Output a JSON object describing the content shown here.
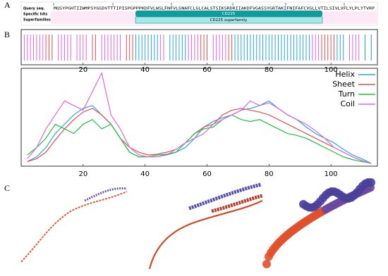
{
  "panels": [
    "A",
    "B",
    "C"
  ],
  "domain_graphic": {
    "rows": [
      "Query seq.",
      "Specific hits",
      "Superfamilies"
    ],
    "sequence": "MQSYPGHTIIWMPSYGGDVTTTIPISPGPPPKDFVLWSLFNFVLGNAFCLGLCALSTSIKSRDRIIAKDFVGASSYGRTAKIFNIFAFCVGLLVTILSIVLVFLYLPLYTVRP",
    "specific_hit": "CD225",
    "superfamily": "CD225 superfamily"
  },
  "chart_data": [
    {
      "type": "strip",
      "xlim": [
        0,
        115
      ],
      "xticks": [
        20,
        40,
        60,
        80,
        100
      ],
      "segments": [
        {
          "start": 1,
          "end": 7,
          "color": "#e066e0"
        },
        {
          "start": 8,
          "end": 10,
          "color": "#e05050"
        },
        {
          "start": 12,
          "end": 16,
          "color": "#e066e0"
        },
        {
          "start": 18,
          "end": 21,
          "color": "#e066e0"
        },
        {
          "start": 23,
          "end": 24,
          "color": "#e05050"
        },
        {
          "start": 26,
          "end": 32,
          "color": "#e066e0"
        },
        {
          "start": 34,
          "end": 36,
          "color": "#e05050"
        },
        {
          "start": 37,
          "end": 44,
          "color": "#2aa7d6"
        },
        {
          "start": 45,
          "end": 46,
          "color": "#e066e0"
        },
        {
          "start": 48,
          "end": 53,
          "color": "#2aa7d6"
        },
        {
          "start": 54,
          "end": 57,
          "color": "#e066e0"
        },
        {
          "start": 58,
          "end": 60,
          "color": "#e05050"
        },
        {
          "start": 62,
          "end": 66,
          "color": "#e066e0"
        },
        {
          "start": 67,
          "end": 68,
          "color": "#e05050"
        },
        {
          "start": 69,
          "end": 93,
          "color": "#2aa7d6"
        },
        {
          "start": 94,
          "end": 96,
          "color": "#e066e0"
        },
        {
          "start": 97,
          "end": 101,
          "color": "#e05050"
        },
        {
          "start": 102,
          "end": 104,
          "color": "#2aa7d6"
        },
        {
          "start": 106,
          "end": 109,
          "color": "#e066e0"
        },
        {
          "start": 111,
          "end": 111,
          "color": "#22a0a0"
        },
        {
          "start": 113,
          "end": 113,
          "color": "#22a0a0"
        }
      ]
    },
    {
      "type": "line",
      "xlim": [
        0,
        115
      ],
      "xticks": [
        20,
        40,
        60,
        80,
        100
      ],
      "ylim": [
        0,
        1.05
      ],
      "x": [
        2,
        5,
        8,
        11,
        14,
        17,
        20,
        23,
        26,
        29,
        32,
        35,
        38,
        41,
        44,
        47,
        50,
        53,
        56,
        59,
        62,
        65,
        68,
        71,
        74,
        77,
        80,
        83,
        86,
        89,
        92,
        95,
        98,
        101,
        104,
        107,
        110,
        113
      ],
      "series": [
        {
          "name": "Helix",
          "color": "#2aa7d6",
          "values": [
            0.05,
            0.1,
            0.2,
            0.35,
            0.45,
            0.55,
            0.62,
            0.65,
            0.55,
            0.45,
            0.3,
            0.15,
            0.1,
            0.1,
            0.12,
            0.13,
            0.15,
            0.2,
            0.3,
            0.42,
            0.48,
            0.52,
            0.55,
            0.6,
            0.62,
            0.65,
            0.7,
            0.62,
            0.55,
            0.5,
            0.42,
            0.35,
            0.3,
            0.25,
            0.18,
            0.12,
            0.08,
            0.03
          ]
        },
        {
          "name": "Sheet",
          "color": "#e05050",
          "values": [
            0.05,
            0.08,
            0.15,
            0.28,
            0.4,
            0.5,
            0.58,
            0.62,
            0.55,
            0.45,
            0.3,
            0.2,
            0.15,
            0.12,
            0.13,
            0.15,
            0.18,
            0.25,
            0.35,
            0.42,
            0.45,
            0.55,
            0.6,
            0.62,
            0.6,
            0.58,
            0.55,
            0.5,
            0.45,
            0.4,
            0.35,
            0.3,
            0.25,
            0.2,
            0.15,
            0.1,
            0.06,
            0.03
          ]
        },
        {
          "name": "Turn",
          "color": "#22c040",
          "values": [
            0.12,
            0.2,
            0.3,
            0.45,
            0.4,
            0.35,
            0.45,
            0.5,
            0.4,
            0.45,
            0.3,
            0.15,
            0.1,
            0.1,
            0.12,
            0.12,
            0.15,
            0.25,
            0.35,
            0.4,
            0.42,
            0.5,
            0.55,
            0.5,
            0.48,
            0.5,
            0.45,
            0.4,
            0.35,
            0.33,
            0.3,
            0.25,
            0.2,
            0.15,
            0.1,
            0.07,
            0.05,
            0.03
          ]
        },
        {
          "name": "Coil",
          "color": "#e066e0",
          "values": [
            0.08,
            0.2,
            0.4,
            0.55,
            0.7,
            0.65,
            0.6,
            0.8,
            1.0,
            0.55,
            0.4,
            0.2,
            0.12,
            0.1,
            0.1,
            0.12,
            0.18,
            0.25,
            0.3,
            0.35,
            0.45,
            0.5,
            0.55,
            0.6,
            0.7,
            0.65,
            0.68,
            0.62,
            0.55,
            0.5,
            0.45,
            0.38,
            0.3,
            0.2,
            0.15,
            0.1,
            0.06,
            0.03
          ]
        }
      ]
    }
  ]
}
